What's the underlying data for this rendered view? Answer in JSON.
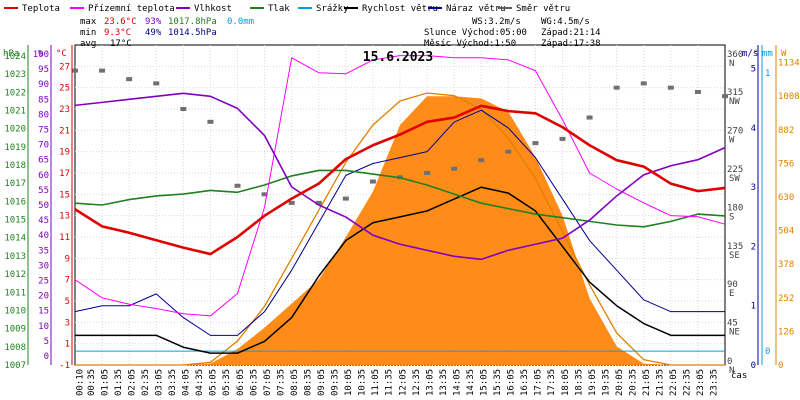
{
  "chart_data": {
    "type": "line",
    "title": "15.6.2023",
    "legend": [
      {
        "name": "Teplota",
        "color": "#e00000"
      },
      {
        "name": "Přízemní teplota",
        "color": "#ff00ff"
      },
      {
        "name": "Vlhkost",
        "color": "#8000c0"
      },
      {
        "name": "Tlak",
        "color": "#208020"
      },
      {
        "name": "Srážky",
        "color": "#00a0e0"
      },
      {
        "name": "Rychlost větru",
        "color": "#000000"
      },
      {
        "name": "Náraz větru",
        "color": "#000090"
      },
      {
        "name": "Směr větru",
        "color": "#606060"
      }
    ],
    "stats": {
      "max_label": "max",
      "max_temp": "23.6°C",
      "max_hum": "93%",
      "max_press": "1017.8hPa",
      "max_rain": "0.0mm",
      "min_label": "min",
      "min_temp": "9.3°C",
      "min_hum": "49%",
      "min_press": "1014.5hPa",
      "avg_label": "avg",
      "avg_temp": "17°C"
    },
    "info": {
      "ws": "WS:3.2m/s",
      "wg": "WG:4.5m/s",
      "sun": "Slunce Východ:05:00",
      "sun_set": "Západ:21:14",
      "moon": "Měsíc  Východ:1:50",
      "moon_set": "Západ:17:38"
    },
    "axes": {
      "hpa": {
        "unit": "hPa",
        "ticks": [
          1007,
          1008,
          1009,
          1010,
          1011,
          1012,
          1013,
          1014,
          1015,
          1016,
          1017,
          1018,
          1019,
          1020,
          1021,
          1022,
          1023,
          1024
        ],
        "range": [
          1007,
          1024.6
        ]
      },
      "humidity": {
        "unit": "%",
        "ticks": [
          0,
          5,
          10,
          15,
          20,
          25,
          30,
          35,
          40,
          45,
          50,
          55,
          60,
          65,
          70,
          75,
          80,
          85,
          90,
          95,
          100
        ],
        "range": [
          -3,
          103
        ]
      },
      "temp": {
        "unit": "°C",
        "ticks": [
          -1,
          1,
          3,
          5,
          7,
          9,
          11,
          13,
          15,
          17,
          19,
          21,
          23,
          25,
          27
        ],
        "range": [
          -1,
          29
        ]
      },
      "wind_dir": {
        "unit": "°",
        "ticks": [
          0,
          45,
          90,
          135,
          180,
          225,
          270,
          315,
          360
        ],
        "labels": [
          "N",
          "NE",
          "E",
          "SE",
          "S",
          "SW",
          "W",
          "NW",
          "N"
        ],
        "range": [
          0,
          375
        ]
      },
      "wind_speed": {
        "unit": "m/s",
        "ticks": [
          0,
          1,
          2,
          3,
          4,
          5
        ],
        "range": [
          0,
          5.4
        ]
      },
      "rain": {
        "unit": "mm",
        "ticks": [
          0,
          1
        ],
        "range": [
          -0.05,
          1.1
        ]
      },
      "solar": {
        "unit": "W",
        "ticks": [
          0,
          126,
          252,
          378,
          504,
          630,
          756,
          882,
          1008,
          1134
        ],
        "range": [
          0,
          1200
        ]
      },
      "time_label": "čas",
      "x_ticks": [
        "00:10",
        "00:35",
        "01:05",
        "01:35",
        "02:05",
        "02:35",
        "03:05",
        "03:35",
        "04:05",
        "04:35",
        "05:05",
        "05:35",
        "06:05",
        "06:35",
        "07:05",
        "07:35",
        "08:05",
        "08:35",
        "09:05",
        "09:35",
        "10:05",
        "10:35",
        "11:05",
        "11:35",
        "12:05",
        "12:35",
        "13:05",
        "13:35",
        "14:05",
        "14:35",
        "15:05",
        "15:35",
        "16:05",
        "16:35",
        "17:05",
        "17:35",
        "18:05",
        "18:35",
        "19:05",
        "19:35",
        "20:05",
        "20:35",
        "21:05",
        "21:35",
        "22:05",
        "22:35",
        "23:05",
        "23:35"
      ]
    },
    "series_hourly": {
      "x_hours": [
        0,
        1,
        2,
        3,
        4,
        5,
        6,
        7,
        8,
        9,
        10,
        11,
        12,
        13,
        14,
        15,
        16,
        17,
        18,
        19,
        20,
        21,
        22,
        23,
        24
      ],
      "temperature": [
        13.6,
        12,
        11.4,
        10.7,
        10,
        9.4,
        11,
        13,
        14.6,
        16,
        18.3,
        19.6,
        20.6,
        21.8,
        22.2,
        23.3,
        22.8,
        22.6,
        21.3,
        19.6,
        18.2,
        17.6,
        16,
        15.3,
        15.6
      ],
      "ground_temperature": [
        7,
        5.3,
        4.7,
        4.3,
        3.8,
        3.6,
        5.7,
        13.8,
        27.8,
        26.4,
        26.3,
        27.6,
        28,
        28,
        27.8,
        27.8,
        27.6,
        26.6,
        22,
        17,
        15.5,
        14.2,
        13,
        12.9,
        12.2
      ],
      "humidity": [
        83,
        84,
        85,
        86,
        87,
        86,
        82,
        73,
        56,
        50,
        46,
        40,
        37,
        35,
        33,
        32,
        35,
        37,
        39,
        45,
        53,
        60,
        63,
        65,
        69
      ],
      "pressure": [
        1015.9,
        1015.8,
        1016.1,
        1016.3,
        1016.4,
        1016.6,
        1016.5,
        1016.9,
        1017.4,
        1017.7,
        1017.7,
        1017.5,
        1017.3,
        1016.9,
        1016.4,
        1015.9,
        1015.6,
        1015.3,
        1015.1,
        1014.9,
        1014.7,
        1014.6,
        1014.9,
        1015.3,
        1015.2
      ],
      "wind_speed": [
        0.5,
        0.5,
        0.5,
        0.5,
        0.3,
        0.2,
        0.2,
        0.4,
        0.8,
        1.5,
        2.1,
        2.4,
        2.5,
        2.6,
        2.8,
        3,
        2.9,
        2.6,
        2,
        1.4,
        1,
        0.7,
        0.5,
        0.5,
        0.5
      ],
      "wind_gust": [
        0.9,
        1,
        1,
        1.2,
        0.8,
        0.5,
        0.5,
        0.9,
        1.6,
        2.4,
        3.2,
        3.4,
        3.5,
        3.6,
        4.1,
        4.3,
        4,
        3.5,
        2.8,
        2.1,
        1.6,
        1.1,
        0.9,
        0.9,
        0.9
      ],
      "wind_direction": [
        345,
        345,
        335,
        330,
        300,
        285,
        210,
        200,
        190,
        190,
        195,
        215,
        220,
        225,
        230,
        240,
        250,
        260,
        265,
        290,
        325,
        330,
        325,
        320,
        315
      ],
      "solar_radiation": [
        0,
        0,
        0,
        0,
        0,
        5,
        60,
        140,
        230,
        320,
        480,
        650,
        900,
        1008,
        1008,
        1000,
        950,
        780,
        560,
        250,
        70,
        5,
        0,
        0,
        0
      ],
      "solar_clear_sky": [
        0,
        0,
        0,
        0,
        0,
        10,
        90,
        220,
        400,
        580,
        760,
        900,
        990,
        1020,
        1010,
        960,
        850,
        700,
        500,
        300,
        120,
        20,
        0,
        0,
        0
      ],
      "rain": [
        0,
        0,
        0,
        0,
        0,
        0,
        0,
        0,
        0,
        0,
        0,
        0,
        0,
        0,
        0,
        0,
        0,
        0,
        0,
        0,
        0,
        0,
        0,
        0,
        0
      ]
    }
  }
}
